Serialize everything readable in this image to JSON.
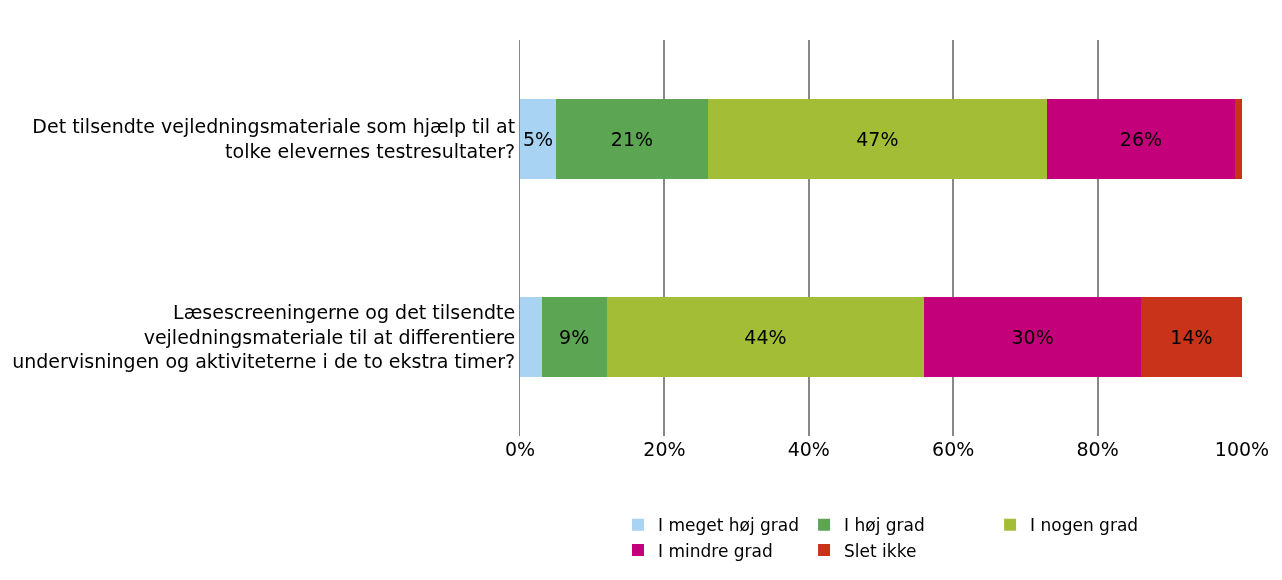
{
  "chart_data": {
    "type": "bar",
    "orientation": "horizontal",
    "stacked": true,
    "categories": [
      "Det tilsendte vejledningsmateriale som hjælp til at tolke elevernes testresultater?",
      "Læsescreeningerne og det tilsendte vejledningsmateriale til at differentiere undervisningen og aktiviteterne i de to ekstra timer?"
    ],
    "series": [
      {
        "name": "I meget høj grad",
        "color": "#a9d3f3",
        "values": [
          5,
          3
        ],
        "value_labels": [
          "5%",
          null
        ]
      },
      {
        "name": "I høj grad",
        "color": "#5ba553",
        "values": [
          21,
          9
        ],
        "value_labels": [
          "21%",
          "9%"
        ]
      },
      {
        "name": "I nogen grad",
        "color": "#a3bd37",
        "values": [
          47,
          44
        ],
        "value_labels": [
          "47%",
          "44%"
        ]
      },
      {
        "name": "I mindre grad",
        "color": "#c3007a",
        "values": [
          26,
          30
        ],
        "value_labels": [
          "26%",
          "30%"
        ]
      },
      {
        "name": "Slet ikke",
        "color": "#c93319",
        "values": [
          1,
          14
        ],
        "value_labels": [
          null,
          "14%"
        ]
      }
    ],
    "xlim": [
      0,
      100
    ],
    "xticks": [
      {
        "value": 0,
        "label": "0%"
      },
      {
        "value": 20,
        "label": "20%"
      },
      {
        "value": 40,
        "label": "40%"
      },
      {
        "value": 60,
        "label": "60%"
      },
      {
        "value": 80,
        "label": "80%"
      },
      {
        "value": 100,
        "label": "100%"
      }
    ],
    "grid": "x",
    "legend": "bottom"
  }
}
